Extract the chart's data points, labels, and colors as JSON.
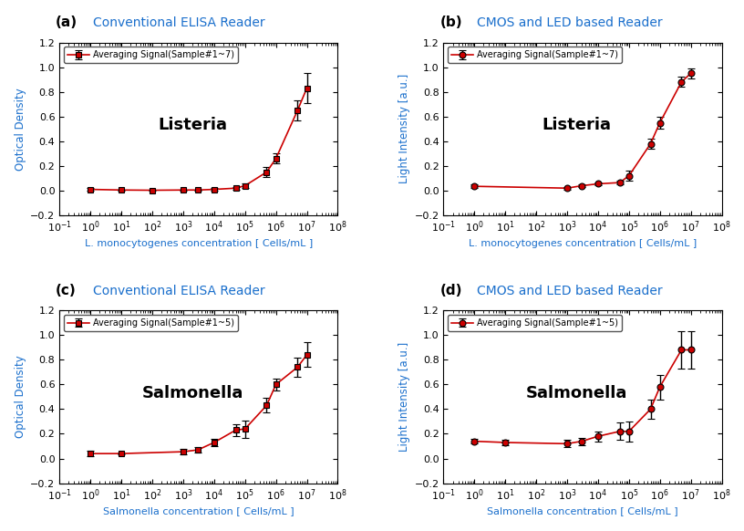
{
  "subplots": [
    {
      "label": "(a)",
      "title": "Conventional ELISA Reader",
      "legend": "Averaging Signal(Sample#1~7)",
      "ylabel": "Optical Density",
      "xlabel": "L. monocytogenes concentration [ Cells/mL ]",
      "bacterium": "Listeria",
      "marker": "s",
      "x": [
        1,
        10,
        100,
        1000,
        3000,
        10000,
        50000,
        100000,
        500000,
        1000000,
        5000000,
        10000000
      ],
      "y": [
        0.01,
        0.005,
        0.003,
        0.005,
        0.005,
        0.01,
        0.02,
        0.04,
        0.15,
        0.26,
        0.65,
        0.83
      ],
      "yerr": [
        0.01,
        0.005,
        0.003,
        0.005,
        0.005,
        0.01,
        0.01,
        0.02,
        0.04,
        0.04,
        0.08,
        0.12
      ]
    },
    {
      "label": "(b)",
      "title": "CMOS and LED based Reader",
      "legend": "Averaging Signal(Sample#1~7)",
      "ylabel": "Light Intensity [a.u.]",
      "xlabel": "L. monocytogenes concentration [ Cells/mL ]",
      "bacterium": "Listeria",
      "marker": "o",
      "x": [
        1,
        1000,
        3000,
        10000,
        50000,
        100000,
        500000,
        1000000,
        5000000,
        10000000
      ],
      "y": [
        0.035,
        0.02,
        0.04,
        0.055,
        0.065,
        0.12,
        0.38,
        0.55,
        0.88,
        0.95
      ],
      "yerr": [
        0.015,
        0.01,
        0.01,
        0.01,
        0.015,
        0.04,
        0.04,
        0.05,
        0.04,
        0.04
      ]
    },
    {
      "label": "(c)",
      "title": "Conventional ELISA Reader",
      "legend": "Averaging Signal(Sample#1~5)",
      "ylabel": "Optical Density",
      "xlabel": "Salmonella concentration [ Cells/mL ]",
      "bacterium": "Salmonella",
      "marker": "s",
      "x": [
        1,
        10,
        1000,
        3000,
        10000,
        50000,
        100000,
        500000,
        1000000,
        5000000,
        10000000
      ],
      "y": [
        0.04,
        0.04,
        0.055,
        0.07,
        0.13,
        0.23,
        0.24,
        0.43,
        0.6,
        0.74,
        0.84
      ],
      "yerr": [
        0.02,
        0.01,
        0.02,
        0.02,
        0.03,
        0.05,
        0.07,
        0.06,
        0.05,
        0.08,
        0.1
      ]
    },
    {
      "label": "(d)",
      "title": "CMOS and LED based Reader",
      "legend": "Averaging Signal(Sample#1~5)",
      "ylabel": "Light Intensity [a.u.]",
      "xlabel": "Salmonella concentration [ Cells/mL ]",
      "bacterium": "Salmonella",
      "marker": "o",
      "x": [
        1,
        10,
        1000,
        3000,
        10000,
        50000,
        100000,
        500000,
        1000000,
        5000000,
        10000000
      ],
      "y": [
        0.14,
        0.13,
        0.12,
        0.14,
        0.18,
        0.22,
        0.22,
        0.4,
        0.58,
        0.88,
        0.88
      ],
      "yerr": [
        0.02,
        0.02,
        0.03,
        0.03,
        0.04,
        0.07,
        0.08,
        0.08,
        0.1,
        0.15,
        0.15
      ]
    }
  ],
  "line_color": "#cc0000",
  "marker_color": "#cc0000",
  "ecolor": "#000000",
  "ylim": [
    -0.2,
    1.2
  ],
  "xlim_log": [
    -1,
    8
  ],
  "yticks": [
    -0.2,
    0.0,
    0.2,
    0.4,
    0.6,
    0.8,
    1.0,
    1.2
  ],
  "axis_color": "#000000",
  "title_color": "#1a6fcc",
  "label_color": "#1a6fcc",
  "panel_label_color": "#000000",
  "bg_color": "#ffffff"
}
